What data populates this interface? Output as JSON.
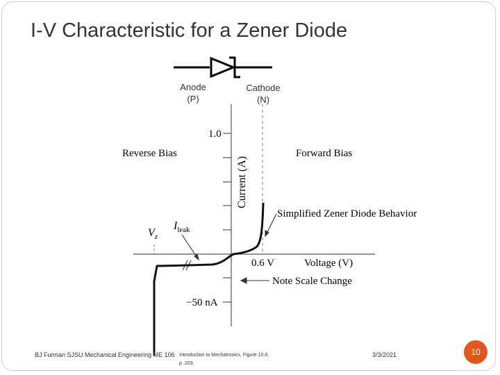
{
  "slide": {
    "title": "I-V Characteristic for a Zener Diode",
    "footer_left": "BJ Furman SJSU Mechanical Engineering  ME 106",
    "footer_ref_line1": "Introduction to Mechatronics, Figure 10.8,",
    "footer_ref_line2": "p. 203.",
    "footer_date": "3/3/2021",
    "page_number": "10",
    "accent_color": "#e2571b"
  },
  "symbol": {
    "anode_label": "Anode",
    "anode_sub": "(P)",
    "cathode_label": "Cathode",
    "cathode_sub": "(N)"
  },
  "graph": {
    "y_tick_top": "1.0",
    "y_tick_bottom": "−50 nA",
    "x_tick_label": "0.6 V",
    "x_axis_label": "Voltage (V)",
    "y_axis_label": "Current (A)",
    "left_region_label": "Reverse Bias",
    "right_region_label": "Forward Bias",
    "curve_label": "Simplified Zener Diode Behavior",
    "scale_note": "Note Scale Change",
    "vz_label": "V",
    "vz_sub": "z",
    "ileak_label": "I",
    "ileak_sub": "leak"
  }
}
